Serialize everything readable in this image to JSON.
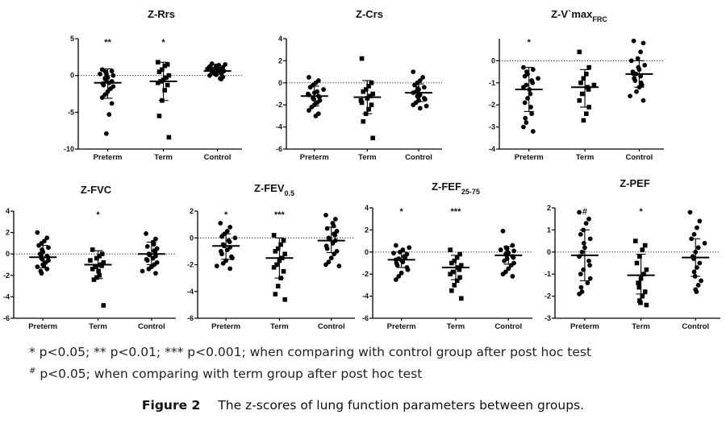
{
  "footnotes": {
    "line1": "* p<0.05; ** p<0.01; *** p<0.001; when comparing with control group after post hoc test",
    "line2_marker": "#",
    "line2_text": " p<0.05; when comparing with term group after post hoc test"
  },
  "caption": {
    "label": "Figure 2",
    "text": "The z-scores of lung function parameters between groups."
  },
  "chart_data": [
    {
      "type": "scatter",
      "title": "Z-Rrs",
      "title_sub": "",
      "categories": [
        "Preterm",
        "Term",
        "Control"
      ],
      "ylim": [
        -10,
        5
      ],
      "yticks": [
        5,
        0,
        -5,
        -10
      ],
      "significance": [
        "**",
        "*",
        ""
      ],
      "summary": [
        {
          "mean": -1.0,
          "sd_low": -3.1,
          "sd_high": 0.9
        },
        {
          "mean": -0.8,
          "sd_low": -3.4,
          "sd_high": 1.8
        },
        {
          "mean": 0.6,
          "sd_low": 0.1,
          "sd_high": 1.1
        }
      ],
      "series": [
        {
          "name": "Preterm",
          "values": [
            0.8,
            0.6,
            0.5,
            0.3,
            0.2,
            0.0,
            -0.1,
            -0.3,
            -0.4,
            -0.6,
            -0.8,
            -1.0,
            -1.1,
            -1.3,
            -1.5,
            -1.8,
            -2.2,
            -2.6,
            -3.0,
            -3.8,
            -5.3,
            -7.9
          ]
        },
        {
          "name": "Term",
          "values": [
            1.8,
            1.5,
            1.3,
            0.8,
            0.5,
            0.0,
            -0.3,
            -0.6,
            -0.8,
            -1.0,
            -1.3,
            -2.0,
            -3.4,
            -5.5,
            -8.4
          ]
        },
        {
          "name": "Control",
          "values": [
            1.6,
            1.5,
            1.4,
            1.3,
            1.2,
            1.1,
            1.0,
            1.0,
            0.9,
            0.9,
            0.8,
            0.8,
            0.7,
            0.7,
            0.6,
            0.6,
            0.5,
            0.5,
            0.4,
            0.3,
            0.2,
            0.1,
            0.0,
            -0.2,
            -0.4,
            -0.5
          ]
        }
      ]
    },
    {
      "type": "scatter",
      "title": "Z-Crs",
      "title_sub": "",
      "categories": [
        "Preterm",
        "Term",
        "Control"
      ],
      "ylim": [
        -6,
        4
      ],
      "yticks": [
        4,
        2,
        0,
        -2,
        -4,
        -6
      ],
      "significance": [
        "",
        "",
        ""
      ],
      "summary": [
        {
          "mean": -1.2,
          "sd_low": -2.1,
          "sd_high": -0.3
        },
        {
          "mean": -1.3,
          "sd_low": -2.8,
          "sd_high": 0.2
        },
        {
          "mean": -0.9,
          "sd_low": -1.7,
          "sd_high": -0.1
        }
      ],
      "series": [
        {
          "name": "Preterm",
          "values": [
            0.5,
            0.2,
            0.0,
            -0.2,
            -0.4,
            -0.6,
            -0.8,
            -0.9,
            -1.0,
            -1.1,
            -1.2,
            -1.3,
            -1.4,
            -1.5,
            -1.6,
            -1.8,
            -2.0,
            -2.2,
            -2.5,
            -2.8,
            -3.0
          ]
        },
        {
          "name": "Term",
          "values": [
            2.2,
            0.0,
            -0.3,
            -0.6,
            -0.8,
            -1.0,
            -1.2,
            -1.4,
            -1.6,
            -1.8,
            -2.0,
            -2.4,
            -2.8,
            -3.5,
            -5.0
          ]
        },
        {
          "name": "Control",
          "values": [
            1.0,
            0.5,
            0.2,
            0.0,
            -0.2,
            -0.4,
            -0.5,
            -0.6,
            -0.8,
            -0.9,
            -1.0,
            -1.1,
            -1.2,
            -1.3,
            -1.4,
            -1.5,
            -1.6,
            -1.8,
            -2.0,
            -2.1,
            -2.3
          ]
        }
      ]
    },
    {
      "type": "scatter",
      "title": "Z-V`max",
      "title_sub": "FRC",
      "categories": [
        "Preterm",
        "Term",
        "Control"
      ],
      "ylim": [
        -4,
        1
      ],
      "yticks": [
        0,
        -1,
        -2,
        -3,
        -4
      ],
      "significance": [
        "*",
        "",
        ""
      ],
      "summary": [
        {
          "mean": -1.3,
          "sd_low": -2.3,
          "sd_high": -0.3
        },
        {
          "mean": -1.2,
          "sd_low": -2.1,
          "sd_high": -0.4
        },
        {
          "mean": -0.6,
          "sd_low": -1.2,
          "sd_high": 0.0
        }
      ],
      "series": [
        {
          "name": "Preterm",
          "values": [
            -0.3,
            -0.4,
            -0.5,
            -0.6,
            -0.7,
            -0.8,
            -0.9,
            -1.0,
            -1.1,
            -1.2,
            -1.3,
            -1.5,
            -1.7,
            -1.9,
            -2.1,
            -2.4,
            -2.6,
            -2.8,
            -3.0,
            -3.2
          ]
        },
        {
          "name": "Term",
          "values": [
            0.4,
            -0.3,
            -0.6,
            -0.8,
            -1.0,
            -1.1,
            -1.2,
            -1.3,
            -1.5,
            -1.8,
            -2.1,
            -2.4,
            -2.7
          ]
        },
        {
          "name": "Control",
          "values": [
            0.9,
            0.8,
            0.4,
            0.1,
            0.0,
            -0.2,
            -0.3,
            -0.4,
            -0.5,
            -0.6,
            -0.6,
            -0.7,
            -0.8,
            -0.9,
            -1.0,
            -1.1,
            -1.2,
            -1.4,
            -1.6,
            -1.8
          ]
        }
      ]
    },
    {
      "type": "scatter",
      "title": "Z-FVC",
      "title_sub": "",
      "categories": [
        "Preterm",
        "Term",
        "Control"
      ],
      "ylim": [
        -6,
        4
      ],
      "yticks": [
        4,
        2,
        0,
        -2,
        -4,
        -6
      ],
      "significance": [
        "",
        "*",
        ""
      ],
      "summary": [
        {
          "mean": -0.3,
          "sd_low": -1.3,
          "sd_high": 0.8
        },
        {
          "mean": -1.0,
          "sd_low": -2.3,
          "sd_high": 0.3
        },
        {
          "mean": 0.0,
          "sd_low": -1.0,
          "sd_high": 1.1
        }
      ],
      "series": [
        {
          "name": "Preterm",
          "values": [
            2.0,
            1.5,
            1.2,
            1.0,
            0.8,
            0.6,
            0.4,
            0.2,
            0.0,
            -0.1,
            -0.2,
            -0.3,
            -0.4,
            -0.5,
            -0.6,
            -0.8,
            -1.0,
            -1.1,
            -1.2,
            -1.4,
            -1.6,
            -1.8
          ]
        },
        {
          "name": "Term",
          "values": [
            0.4,
            0.0,
            -0.2,
            -0.4,
            -0.6,
            -0.8,
            -1.0,
            -1.1,
            -1.2,
            -1.4,
            -1.6,
            -2.0,
            -2.2,
            -2.4,
            -4.8
          ]
        },
        {
          "name": "Control",
          "values": [
            1.9,
            1.4,
            1.1,
            0.9,
            0.7,
            0.5,
            0.3,
            0.2,
            0.0,
            -0.1,
            -0.2,
            -0.4,
            -0.5,
            -0.6,
            -0.8,
            -1.0,
            -1.2,
            -1.4,
            -1.6,
            -1.8
          ]
        }
      ]
    },
    {
      "type": "scatter",
      "title": "Z-FEV",
      "title_sub": "0.5",
      "categories": [
        "Preterm",
        "Term",
        "Control"
      ],
      "ylim": [
        -6,
        2
      ],
      "yticks": [
        2,
        0,
        -2,
        -4,
        -6
      ],
      "significance": [
        "*",
        "***",
        ""
      ],
      "summary": [
        {
          "mean": -0.6,
          "sd_low": -1.6,
          "sd_high": 0.3
        },
        {
          "mean": -1.5,
          "sd_low": -3.0,
          "sd_high": 0.0
        },
        {
          "mean": -0.2,
          "sd_low": -1.1,
          "sd_high": 0.8
        }
      ],
      "series": [
        {
          "name": "Preterm",
          "values": [
            1.1,
            0.8,
            0.5,
            0.3,
            0.1,
            0.0,
            -0.2,
            -0.3,
            -0.5,
            -0.6,
            -0.7,
            -0.9,
            -1.0,
            -1.2,
            -1.4,
            -1.5,
            -1.7,
            -1.9,
            -2.1,
            -2.3
          ]
        },
        {
          "name": "Term",
          "values": [
            0.2,
            -0.2,
            -0.5,
            -0.8,
            -1.0,
            -1.2,
            -1.5,
            -1.7,
            -2.0,
            -2.2,
            -2.5,
            -3.0,
            -3.6,
            -4.2,
            -4.6
          ]
        },
        {
          "name": "Control",
          "values": [
            1.7,
            1.4,
            1.1,
            0.9,
            0.7,
            0.5,
            0.3,
            0.2,
            0.0,
            -0.1,
            -0.2,
            -0.4,
            -0.6,
            -0.8,
            -1.0,
            -1.2,
            -1.5,
            -1.8,
            -2.0,
            -2.1
          ]
        }
      ]
    },
    {
      "type": "scatter",
      "title": "Z-FEF",
      "title_sub": "25-75",
      "categories": [
        "Preterm",
        "Term",
        "Control"
      ],
      "ylim": [
        -6,
        4
      ],
      "yticks": [
        4,
        2,
        0,
        -2,
        -4,
        -6
      ],
      "significance": [
        "*",
        "***",
        ""
      ],
      "summary": [
        {
          "mean": -0.7,
          "sd_low": -1.4,
          "sd_high": 0.0
        },
        {
          "mean": -1.4,
          "sd_low": -2.5,
          "sd_high": -0.3
        },
        {
          "mean": -0.3,
          "sd_low": -1.1,
          "sd_high": 0.5
        }
      ],
      "series": [
        {
          "name": "Preterm",
          "values": [
            0.6,
            0.4,
            0.2,
            0.0,
            -0.1,
            -0.2,
            -0.4,
            -0.5,
            -0.6,
            -0.7,
            -0.8,
            -0.9,
            -1.0,
            -1.2,
            -1.4,
            -1.6,
            -1.9,
            -2.2,
            -2.5
          ]
        },
        {
          "name": "Term",
          "values": [
            0.2,
            -0.2,
            -0.5,
            -0.8,
            -1.0,
            -1.2,
            -1.4,
            -1.6,
            -1.8,
            -2.0,
            -2.3,
            -2.6,
            -3.0,
            -3.5,
            -4.2
          ]
        },
        {
          "name": "Control",
          "values": [
            1.9,
            0.6,
            0.4,
            0.3,
            0.2,
            0.1,
            0.0,
            -0.1,
            -0.2,
            -0.3,
            -0.4,
            -0.5,
            -0.6,
            -0.8,
            -1.0,
            -1.2,
            -1.5,
            -1.8,
            -2.0,
            -2.2
          ]
        }
      ]
    },
    {
      "type": "scatter",
      "title": "Z-PEF",
      "title_sub": "",
      "categories": [
        "Preterm",
        "Term",
        "Control"
      ],
      "ylim": [
        -3,
        2
      ],
      "yticks": [
        2,
        1,
        0,
        -1,
        -2,
        -3
      ],
      "significance": [
        "#",
        "*",
        ""
      ],
      "summary": [
        {
          "mean": -0.15,
          "sd_low": -1.3,
          "sd_high": 1.0
        },
        {
          "mean": -1.05,
          "sd_low": -1.9,
          "sd_high": -0.1
        },
        {
          "mean": -0.25,
          "sd_low": -1.1,
          "sd_high": 0.6
        }
      ],
      "series": [
        {
          "name": "Preterm",
          "values": [
            1.8,
            1.5,
            1.3,
            1.0,
            0.8,
            0.6,
            0.4,
            0.2,
            0.0,
            -0.2,
            -0.4,
            -0.6,
            -0.8,
            -1.0,
            -1.2,
            -1.4,
            -1.6,
            -1.8,
            -1.9
          ]
        },
        {
          "name": "Term",
          "values": [
            0.5,
            0.3,
            0.1,
            -0.2,
            -0.5,
            -0.8,
            -1.0,
            -1.2,
            -1.4,
            -1.6,
            -1.8,
            -2.0,
            -2.2,
            -2.3,
            -2.4
          ]
        },
        {
          "name": "Control",
          "values": [
            1.8,
            1.4,
            1.1,
            0.8,
            0.6,
            0.4,
            0.2,
            0.0,
            -0.2,
            -0.3,
            -0.5,
            -0.7,
            -0.9,
            -1.1,
            -1.3,
            -1.5,
            -1.7,
            -1.8
          ]
        }
      ]
    }
  ]
}
